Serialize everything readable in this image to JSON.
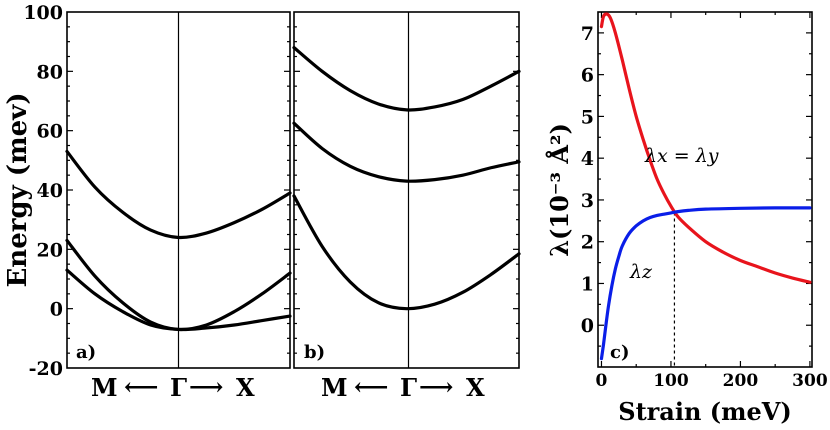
{
  "chart_data": [
    {
      "type": "line",
      "panel_label": "a)",
      "ylabel": "Energy (mev)",
      "ylim": [
        -20,
        100
      ],
      "yticks": [
        -20,
        0,
        20,
        40,
        60,
        80,
        100
      ],
      "x_axis": {
        "left": "M",
        "center": "Γ",
        "right": "X",
        "arrow_left": "⟵",
        "arrow_right": "⟶"
      },
      "xlim": [
        -1,
        1
      ],
      "series": [
        {
          "x": [
            -1,
            -0.75,
            -0.5,
            -0.25,
            0,
            0.25,
            0.5,
            0.75,
            1
          ],
          "values": [
            53,
            41,
            32.5,
            26.5,
            24,
            25.5,
            29,
            33.5,
            39
          ]
        },
        {
          "x": [
            -1,
            -0.75,
            -0.5,
            -0.25,
            0,
            0.25,
            0.5,
            0.75,
            1
          ],
          "values": [
            23,
            11,
            2,
            -4.5,
            -7,
            -5.5,
            -1,
            5,
            12
          ]
        },
        {
          "x": [
            -1,
            -0.75,
            -0.5,
            -0.25,
            0,
            0.25,
            0.5,
            0.75,
            1
          ],
          "values": [
            13,
            5,
            -1,
            -5.5,
            -7,
            -6.5,
            -5.5,
            -4,
            -2.5
          ]
        }
      ]
    },
    {
      "type": "line",
      "panel_label": "b)",
      "ylim": [
        -20,
        100
      ],
      "x_axis": {
        "left": "M",
        "center": "Γ",
        "right": "X",
        "arrow_left": "⟵",
        "arrow_right": "⟶"
      },
      "xlim": [
        -1,
        1
      ],
      "series": [
        {
          "x": [
            -1,
            -0.75,
            -0.5,
            -0.25,
            0,
            0.25,
            0.5,
            0.75,
            1
          ],
          "values": [
            88,
            80,
            73.5,
            69,
            67,
            68,
            70.5,
            75,
            80
          ]
        },
        {
          "x": [
            -1,
            -0.75,
            -0.5,
            -0.25,
            0,
            0.25,
            0.5,
            0.75,
            1
          ],
          "values": [
            62.5,
            54,
            48,
            44.5,
            43,
            43.5,
            45,
            47.5,
            49.5
          ]
        },
        {
          "x": [
            -1,
            -0.75,
            -0.5,
            -0.25,
            0,
            0.25,
            0.5,
            0.75,
            1
          ],
          "values": [
            38,
            21,
            9,
            2,
            0,
            1.5,
            5.5,
            11.5,
            18.5
          ]
        }
      ]
    },
    {
      "type": "line",
      "panel_label": "c)",
      "xlabel": "Strain (meV)",
      "ylabel": "λ(10⁻³ Å²)",
      "xlim": [
        -5,
        303
      ],
      "ylim": [
        -1,
        7.5
      ],
      "xticks": [
        0,
        100,
        200,
        300
      ],
      "yticks": [
        0,
        1,
        2,
        3,
        4,
        5,
        6,
        7
      ],
      "crossing_x": 105,
      "series": [
        {
          "name": "λx = λy",
          "color": "#e8141c",
          "x": [
            0,
            3,
            8,
            13,
            20,
            30,
            40,
            50,
            60,
            70,
            80,
            90,
            100,
            110,
            125,
            150,
            175,
            200,
            225,
            250,
            275,
            300
          ],
          "values": [
            7.15,
            7.4,
            7.45,
            7.35,
            7.0,
            6.35,
            5.65,
            5.0,
            4.45,
            3.95,
            3.5,
            3.15,
            2.85,
            2.6,
            2.35,
            2.0,
            1.75,
            1.55,
            1.4,
            1.25,
            1.13,
            1.03
          ]
        },
        {
          "name": "λz",
          "color": "#0a1ee8",
          "x": [
            0,
            3,
            6,
            10,
            15,
            20,
            25,
            30,
            40,
            50,
            60,
            70,
            80,
            90,
            100,
            110,
            125,
            150,
            200,
            250,
            300
          ],
          "values": [
            -0.8,
            -0.45,
            -0.05,
            0.45,
            0.95,
            1.35,
            1.65,
            1.9,
            2.2,
            2.38,
            2.5,
            2.58,
            2.63,
            2.66,
            2.69,
            2.72,
            2.75,
            2.78,
            2.8,
            2.81,
            2.81
          ]
        }
      ]
    }
  ]
}
